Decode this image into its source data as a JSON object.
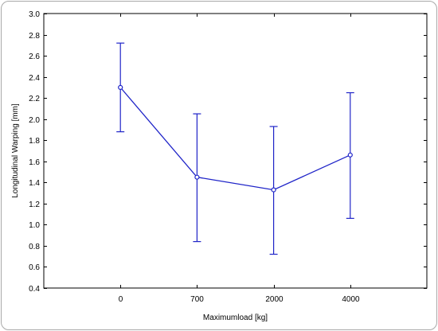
{
  "chart_data": {
    "type": "line",
    "title": "",
    "xlabel": "Maximumload [kg]",
    "ylabel": "Longitudinal Warping [mm]",
    "categories": [
      "0",
      "700",
      "2000",
      "4000"
    ],
    "series": [
      {
        "values": [
          2.3,
          1.45,
          1.33,
          1.66
        ],
        "error_low": [
          1.88,
          0.84,
          0.72,
          1.06
        ],
        "error_high": [
          2.72,
          2.05,
          1.93,
          2.25
        ]
      }
    ],
    "ylim": [
      0.4,
      3.0
    ],
    "yticks": [
      "0.4",
      "0.6",
      "0.8",
      "1.0",
      "1.2",
      "1.4",
      "1.6",
      "1.8",
      "2.0",
      "2.2",
      "2.4",
      "2.6",
      "2.8",
      "3.0"
    ],
    "grid": false,
    "colors": {
      "series": "#1f24c8",
      "axis": "#000000"
    }
  }
}
